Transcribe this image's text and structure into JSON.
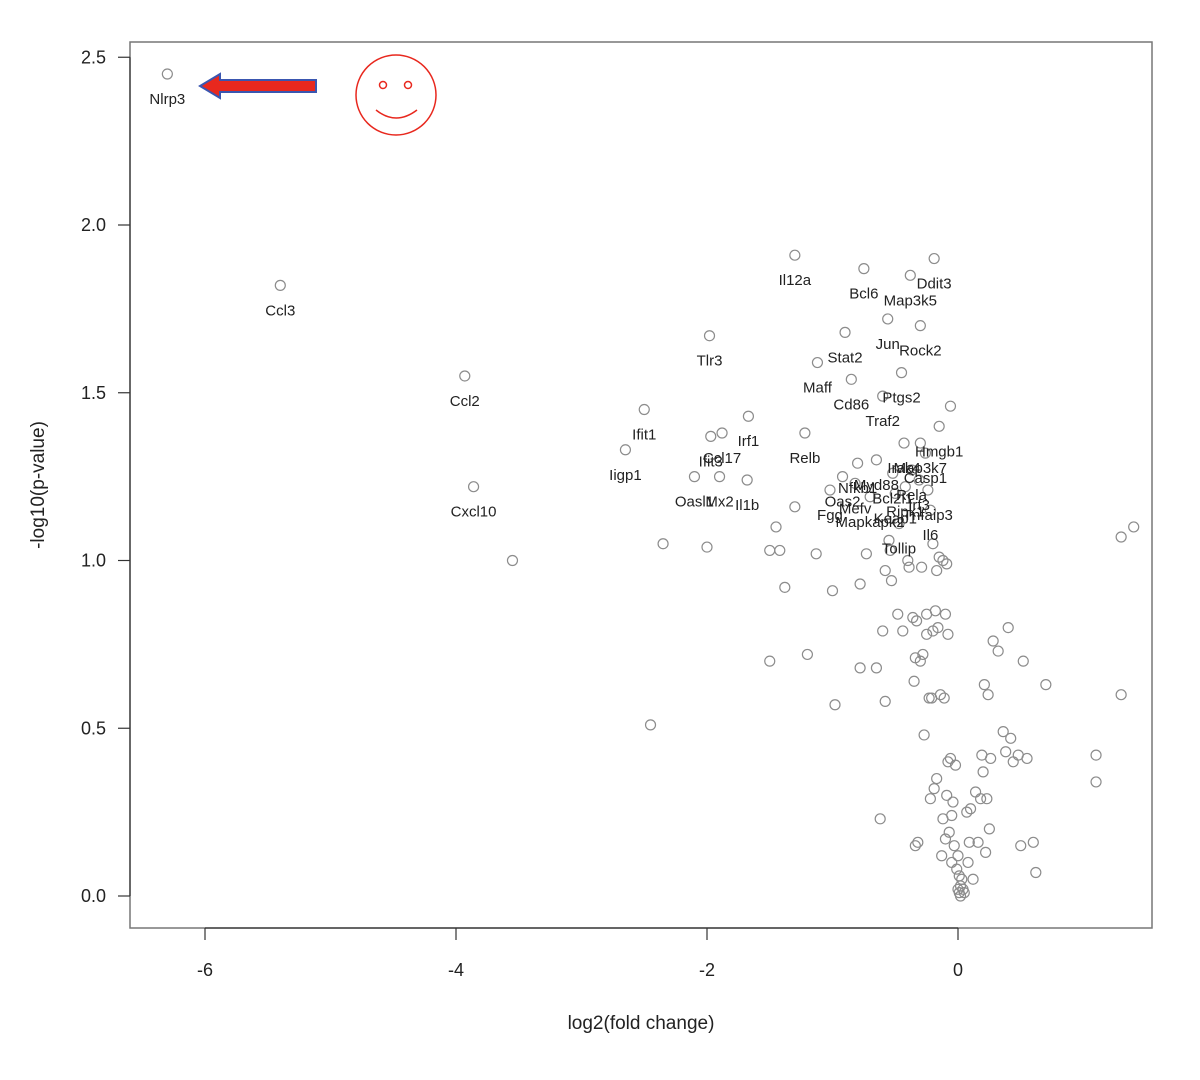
{
  "chart_data": {
    "type": "scatter",
    "title": "",
    "xlabel": "log2(fold change)",
    "ylabel": "-log10(p-value)",
    "xlim": [
      -6.6,
      0.8
    ],
    "ylim": [
      -0.1,
      2.55
    ],
    "x_ticks": [
      -6,
      -4,
      -2,
      0
    ],
    "y_ticks": [
      0.0,
      0.5,
      1.0,
      1.5,
      2.0,
      2.5
    ],
    "x_tick_labels": [
      "-6",
      "-4",
      "-2",
      "0"
    ],
    "y_tick_labels": [
      "0.0",
      "0.5",
      "1.0",
      "1.5",
      "2.0",
      "2.5"
    ],
    "marker_color": "#8c8c8c",
    "annotation_color": "#e8281e",
    "arrow_fill": "#e8281e",
    "arrow_outline": "#3a56b0",
    "points": [
      {
        "x": -6.3,
        "y": 2.45,
        "label": "Nlrp3"
      },
      {
        "x": -5.4,
        "y": 1.82,
        "label": "Ccl3"
      },
      {
        "x": -3.93,
        "y": 1.55,
        "label": "Ccl2"
      },
      {
        "x": -3.86,
        "y": 1.22,
        "label": "Cxcl10"
      },
      {
        "x": -3.55,
        "y": 1.0,
        "label": ""
      },
      {
        "x": -2.5,
        "y": 1.45,
        "label": "Ifit1"
      },
      {
        "x": -2.65,
        "y": 1.33,
        "label": "Iigp1"
      },
      {
        "x": -2.45,
        "y": 0.51,
        "label": ""
      },
      {
        "x": -2.35,
        "y": 1.05,
        "label": ""
      },
      {
        "x": -2.1,
        "y": 1.25,
        "label": "Oasl1"
      },
      {
        "x": -1.98,
        "y": 1.67,
        "label": "Tlr3"
      },
      {
        "x": -1.97,
        "y": 1.37,
        "label": "Ifit3"
      },
      {
        "x": -1.88,
        "y": 1.38,
        "label": "Ccl17"
      },
      {
        "x": -2.0,
        "y": 1.04,
        "label": ""
      },
      {
        "x": -1.9,
        "y": 1.25,
        "label": "Mx2"
      },
      {
        "x": -1.68,
        "y": 1.24,
        "label": "Il1b"
      },
      {
        "x": -1.67,
        "y": 1.43,
        "label": "Irf1"
      },
      {
        "x": -1.5,
        "y": 1.03,
        "label": ""
      },
      {
        "x": -1.45,
        "y": 1.1,
        "label": ""
      },
      {
        "x": -1.42,
        "y": 1.03,
        "label": ""
      },
      {
        "x": -1.38,
        "y": 0.92,
        "label": ""
      },
      {
        "x": -1.5,
        "y": 0.7,
        "label": ""
      },
      {
        "x": -1.3,
        "y": 1.91,
        "label": "Il12a"
      },
      {
        "x": -1.3,
        "y": 1.16,
        "label": ""
      },
      {
        "x": -1.22,
        "y": 1.38,
        "label": "Relb"
      },
      {
        "x": -1.2,
        "y": 0.72,
        "label": ""
      },
      {
        "x": -1.13,
        "y": 1.02,
        "label": ""
      },
      {
        "x": -1.12,
        "y": 1.59,
        "label": "Maff"
      },
      {
        "x": -1.02,
        "y": 1.21,
        "label": "Fgg"
      },
      {
        "x": -1.0,
        "y": 0.91,
        "label": ""
      },
      {
        "x": -0.98,
        "y": 0.57,
        "label": ""
      },
      {
        "x": -0.92,
        "y": 1.25,
        "label": "Oas2"
      },
      {
        "x": -0.9,
        "y": 1.68,
        "label": "Stat2"
      },
      {
        "x": -0.85,
        "y": 1.54,
        "label": "Cd86"
      },
      {
        "x": -0.82,
        "y": 1.23,
        "label": "Mefv"
      },
      {
        "x": -0.8,
        "y": 1.29,
        "label": "Nfkb1"
      },
      {
        "x": -0.78,
        "y": 0.93,
        "label": ""
      },
      {
        "x": -0.78,
        "y": 0.68,
        "label": ""
      },
      {
        "x": -0.75,
        "y": 1.87,
        "label": "Bcl6"
      },
      {
        "x": -0.73,
        "y": 1.02,
        "label": ""
      },
      {
        "x": -0.7,
        "y": 1.19,
        "label": "Mapkapk2"
      },
      {
        "x": -0.65,
        "y": 1.3,
        "label": "Myd88"
      },
      {
        "x": -0.65,
        "y": 0.68,
        "label": ""
      },
      {
        "x": -0.62,
        "y": 0.23,
        "label": ""
      },
      {
        "x": -0.6,
        "y": 1.49,
        "label": "Traf2"
      },
      {
        "x": -0.6,
        "y": 0.79,
        "label": ""
      },
      {
        "x": -0.58,
        "y": 0.58,
        "label": ""
      },
      {
        "x": -0.58,
        "y": 0.97,
        "label": ""
      },
      {
        "x": -0.56,
        "y": 1.72,
        "label": "Jun"
      },
      {
        "x": -0.55,
        "y": 1.06,
        "label": ""
      },
      {
        "x": -0.54,
        "y": 1.03,
        "label": ""
      },
      {
        "x": -0.53,
        "y": 0.94,
        "label": ""
      },
      {
        "x": -0.52,
        "y": 1.26,
        "label": "Bcl2l1"
      },
      {
        "x": -0.5,
        "y": 1.2,
        "label": "Keap1"
      },
      {
        "x": -0.48,
        "y": 0.84,
        "label": ""
      },
      {
        "x": -0.47,
        "y": 1.11,
        "label": "Tollip"
      },
      {
        "x": -0.45,
        "y": 1.56,
        "label": "Ptgs2"
      },
      {
        "x": -0.44,
        "y": 0.79,
        "label": ""
      },
      {
        "x": -0.43,
        "y": 1.35,
        "label": "Irak4"
      },
      {
        "x": -0.42,
        "y": 1.22,
        "label": "Ripk1"
      },
      {
        "x": -0.4,
        "y": 1.0,
        "label": ""
      },
      {
        "x": -0.39,
        "y": 0.98,
        "label": ""
      },
      {
        "x": -0.38,
        "y": 1.85,
        "label": "Map3k5"
      },
      {
        "x": -0.37,
        "y": 1.27,
        "label": "Rela"
      },
      {
        "x": -0.36,
        "y": 0.83,
        "label": ""
      },
      {
        "x": -0.35,
        "y": 0.64,
        "label": ""
      },
      {
        "x": -0.34,
        "y": 0.15,
        "label": ""
      },
      {
        "x": -0.34,
        "y": 0.71,
        "label": ""
      },
      {
        "x": -0.33,
        "y": 0.82,
        "label": ""
      },
      {
        "x": -0.32,
        "y": 0.16,
        "label": ""
      },
      {
        "x": -0.31,
        "y": 1.24,
        "label": "Irf3"
      },
      {
        "x": -0.3,
        "y": 1.35,
        "label": "Map3k7"
      },
      {
        "x": -0.3,
        "y": 0.7,
        "label": ""
      },
      {
        "x": -0.3,
        "y": 1.7,
        "label": "Rock2"
      },
      {
        "x": -0.29,
        "y": 0.98,
        "label": ""
      },
      {
        "x": -0.28,
        "y": 0.72,
        "label": ""
      },
      {
        "x": -0.27,
        "y": 0.48,
        "label": ""
      },
      {
        "x": -0.26,
        "y": 1.32,
        "label": "Casp1"
      },
      {
        "x": -0.25,
        "y": 0.84,
        "label": ""
      },
      {
        "x": -0.25,
        "y": 0.78,
        "label": ""
      },
      {
        "x": -0.24,
        "y": 1.21,
        "label": "Tnfaip3"
      },
      {
        "x": -0.23,
        "y": 0.59,
        "label": ""
      },
      {
        "x": -0.22,
        "y": 0.29,
        "label": ""
      },
      {
        "x": -0.22,
        "y": 1.15,
        "label": "Il6"
      },
      {
        "x": -0.21,
        "y": 0.59,
        "label": ""
      },
      {
        "x": -0.2,
        "y": 1.05,
        "label": ""
      },
      {
        "x": -0.2,
        "y": 0.79,
        "label": ""
      },
      {
        "x": -0.19,
        "y": 1.9,
        "label": "Ddit3"
      },
      {
        "x": -0.19,
        "y": 0.32,
        "label": ""
      },
      {
        "x": -0.18,
        "y": 0.85,
        "label": ""
      },
      {
        "x": -0.17,
        "y": 0.97,
        "label": ""
      },
      {
        "x": -0.17,
        "y": 0.35,
        "label": ""
      },
      {
        "x": -0.16,
        "y": 0.8,
        "label": ""
      },
      {
        "x": -0.15,
        "y": 1.4,
        "label": "Hmgb1"
      },
      {
        "x": -0.15,
        "y": 1.01,
        "label": ""
      },
      {
        "x": -0.14,
        "y": 0.6,
        "label": ""
      },
      {
        "x": -0.13,
        "y": 0.12,
        "label": ""
      },
      {
        "x": -0.12,
        "y": 0.23,
        "label": ""
      },
      {
        "x": -0.12,
        "y": 1.0,
        "label": ""
      },
      {
        "x": -0.11,
        "y": 0.59,
        "label": ""
      },
      {
        "x": -0.1,
        "y": 0.17,
        "label": ""
      },
      {
        "x": -0.1,
        "y": 0.84,
        "label": ""
      },
      {
        "x": -0.09,
        "y": 0.99,
        "label": ""
      },
      {
        "x": -0.09,
        "y": 0.3,
        "label": ""
      },
      {
        "x": -0.08,
        "y": 0.4,
        "label": ""
      },
      {
        "x": -0.08,
        "y": 0.78,
        "label": ""
      },
      {
        "x": -0.07,
        "y": 0.19,
        "label": ""
      },
      {
        "x": -0.06,
        "y": 0.41,
        "label": ""
      },
      {
        "x": -0.05,
        "y": 0.24,
        "label": ""
      },
      {
        "x": -0.05,
        "y": 0.1,
        "label": ""
      },
      {
        "x": -0.04,
        "y": 0.28,
        "label": ""
      },
      {
        "x": -0.03,
        "y": 0.15,
        "label": ""
      },
      {
        "x": -0.02,
        "y": 0.39,
        "label": ""
      },
      {
        "x": 0.0,
        "y": 0.12,
        "label": ""
      },
      {
        "x": 0.01,
        "y": 0.06,
        "label": ""
      },
      {
        "x": 0.02,
        "y": 0.03,
        "label": ""
      },
      {
        "x": 0.0,
        "y": 0.02,
        "label": ""
      },
      {
        "x": 0.01,
        "y": 0.01,
        "label": ""
      },
      {
        "x": 0.02,
        "y": 0.0,
        "label": ""
      },
      {
        "x": -0.01,
        "y": 0.08,
        "label": ""
      },
      {
        "x": 0.03,
        "y": 0.05,
        "label": ""
      },
      {
        "x": 0.04,
        "y": 0.02,
        "label": ""
      },
      {
        "x": 0.05,
        "y": 0.01,
        "label": ""
      },
      {
        "x": -0.06,
        "y": 1.46,
        "label": ""
      },
      {
        "x": 0.07,
        "y": 0.25,
        "label": ""
      },
      {
        "x": 0.08,
        "y": 0.1,
        "label": ""
      },
      {
        "x": 0.09,
        "y": 0.16,
        "label": ""
      },
      {
        "x": 0.1,
        "y": 0.26,
        "label": ""
      },
      {
        "x": 0.12,
        "y": 0.05,
        "label": ""
      },
      {
        "x": 0.14,
        "y": 0.31,
        "label": ""
      },
      {
        "x": 0.16,
        "y": 0.16,
        "label": ""
      },
      {
        "x": 0.18,
        "y": 0.29,
        "label": ""
      },
      {
        "x": 0.19,
        "y": 0.42,
        "label": ""
      },
      {
        "x": 0.2,
        "y": 0.37,
        "label": ""
      },
      {
        "x": 0.21,
        "y": 0.63,
        "label": ""
      },
      {
        "x": 0.22,
        "y": 0.13,
        "label": ""
      },
      {
        "x": 0.23,
        "y": 0.29,
        "label": ""
      },
      {
        "x": 0.24,
        "y": 0.6,
        "label": ""
      },
      {
        "x": 0.25,
        "y": 0.2,
        "label": ""
      },
      {
        "x": 0.26,
        "y": 0.41,
        "label": ""
      },
      {
        "x": 0.28,
        "y": 0.76,
        "label": ""
      },
      {
        "x": 0.32,
        "y": 0.73,
        "label": ""
      },
      {
        "x": 0.36,
        "y": 0.49,
        "label": ""
      },
      {
        "x": 0.38,
        "y": 0.43,
        "label": ""
      },
      {
        "x": 0.4,
        "y": 0.8,
        "label": ""
      },
      {
        "x": 0.42,
        "y": 0.47,
        "label": ""
      },
      {
        "x": 0.44,
        "y": 0.4,
        "label": ""
      },
      {
        "x": 0.48,
        "y": 0.42,
        "label": ""
      },
      {
        "x": 0.5,
        "y": 0.15,
        "label": ""
      },
      {
        "x": 0.52,
        "y": 0.7,
        "label": ""
      },
      {
        "x": 0.55,
        "y": 0.41,
        "label": ""
      },
      {
        "x": 0.6,
        "y": 0.16,
        "label": ""
      },
      {
        "x": 0.62,
        "y": 0.07,
        "label": ""
      },
      {
        "x": 0.7,
        "y": 0.63,
        "label": ""
      },
      {
        "x": 1.1,
        "y": 0.34,
        "label": ""
      },
      {
        "x": 1.1,
        "y": 0.42,
        "label": ""
      },
      {
        "x": 1.3,
        "y": 0.6,
        "label": ""
      },
      {
        "x": 1.3,
        "y": 1.07,
        "label": ""
      },
      {
        "x": 1.4,
        "y": 1.1,
        "label": ""
      }
    ]
  }
}
